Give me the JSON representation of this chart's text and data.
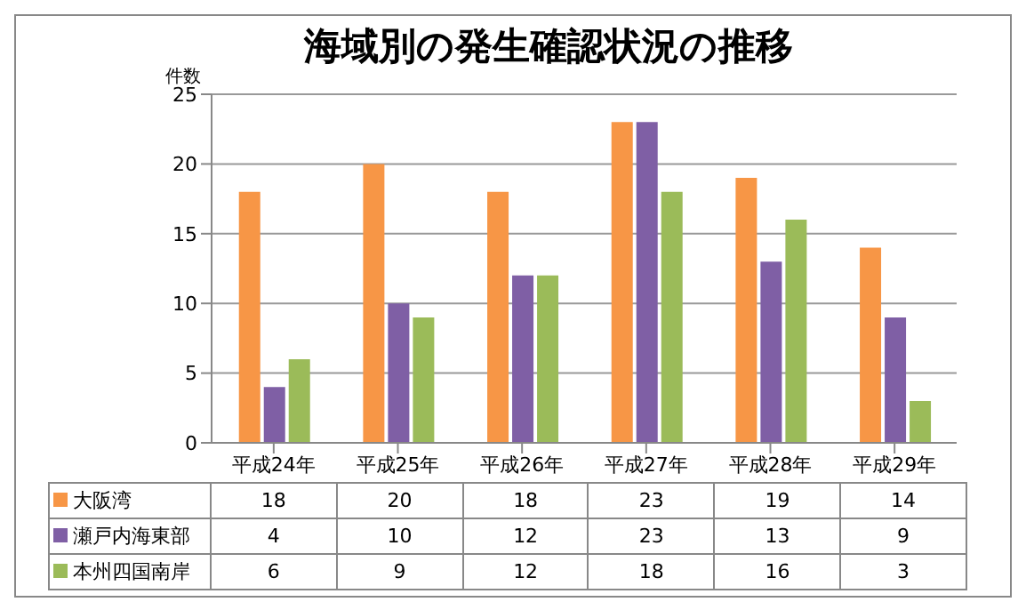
{
  "chart_data": {
    "type": "bar",
    "title": "海域別の発生確認状況の推移",
    "ylabel": "件数",
    "categories": [
      "平成24年",
      "平成25年",
      "平成26年",
      "平成27年",
      "平成28年",
      "平成29年"
    ],
    "series": [
      {
        "name": "大阪湾",
        "color": "#f79646",
        "values": [
          18,
          20,
          18,
          23,
          19,
          14
        ]
      },
      {
        "name": "瀬戸内海東部",
        "color": "#7f5fa5",
        "values": [
          4,
          10,
          12,
          23,
          13,
          9
        ]
      },
      {
        "name": "本州四国南岸",
        "color": "#9bbb59",
        "values": [
          6,
          9,
          12,
          18,
          16,
          3
        ]
      }
    ],
    "ylim": [
      0,
      25
    ],
    "yticks": [
      0,
      5,
      10,
      15,
      20,
      25
    ],
    "grid": "y",
    "legend": "bottom",
    "data_labels": true
  }
}
